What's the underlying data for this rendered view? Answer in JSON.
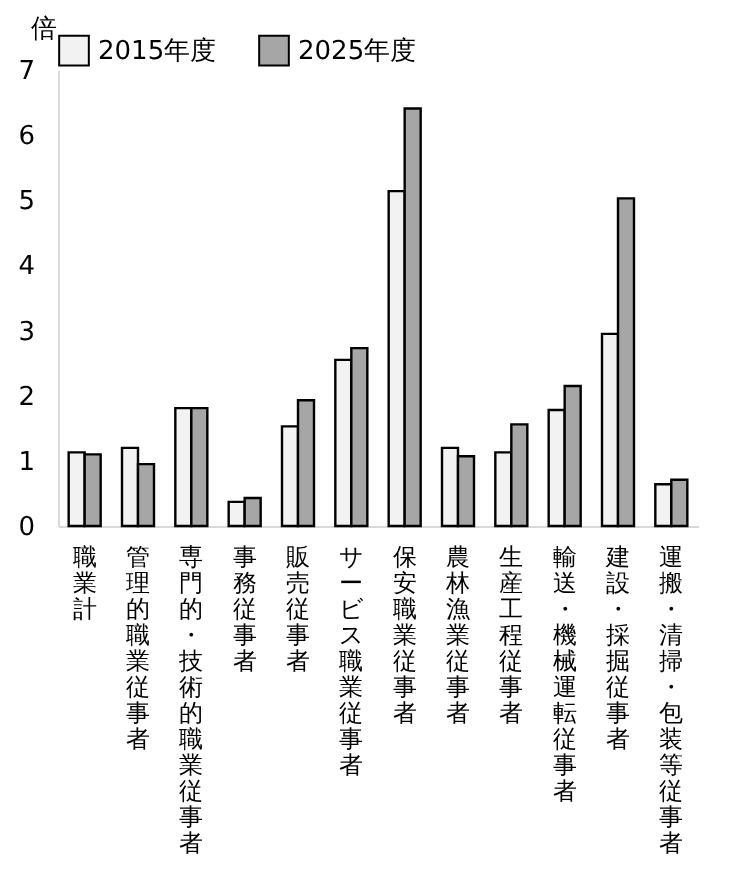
{
  "chart_data": {
    "type": "bar",
    "ylabel": "倍",
    "categories": [
      "職業計",
      "管理的職業従事者",
      "専門的・技術的職業従事者",
      "事務従事者",
      "販売従事者",
      "サービス職業従事者",
      "保安職業従事者",
      "農林漁業従事者",
      "生産工程従事者",
      "輸送・機械運転従事者",
      "建設・採掘従事者",
      "運搬・清掃・包装等従事者"
    ],
    "series": [
      {
        "name": "2015年度",
        "color": "#f2f2f2",
        "values": [
          1.13,
          1.2,
          1.81,
          0.37,
          1.53,
          2.55,
          5.14,
          1.2,
          1.13,
          1.78,
          2.95,
          0.64
        ]
      },
      {
        "name": "2025年度",
        "color": "#a6a6a6",
        "values": [
          1.1,
          0.95,
          1.81,
          0.43,
          1.93,
          2.73,
          6.41,
          1.07,
          1.56,
          2.15,
          5.03,
          0.71
        ]
      }
    ],
    "ylim": [
      0,
      7
    ],
    "yticks": [
      0,
      1,
      2,
      3,
      4,
      5,
      6,
      7
    ],
    "grid": false,
    "legend": "top"
  }
}
